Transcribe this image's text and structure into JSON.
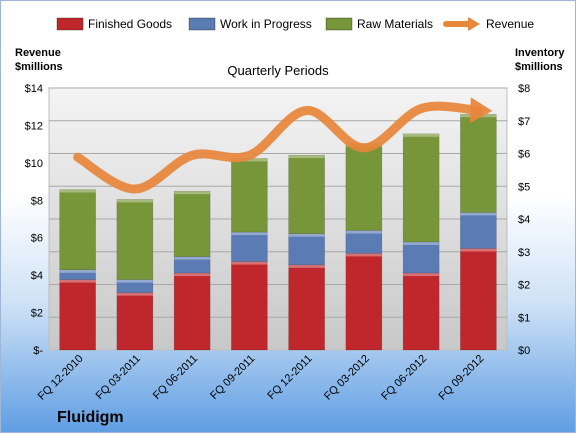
{
  "company": "Fluidigm",
  "chart_data": {
    "type": "bar",
    "stacked": true,
    "title": "Quarterly Periods",
    "categories": [
      "FQ 12-2010",
      "FQ 03-2011",
      "FQ 06-2011",
      "FQ 09-2011",
      "FQ 12-2011",
      "FQ 03-2012",
      "FQ 06-2012",
      "FQ 09-2012"
    ],
    "left_axis": {
      "label_lines": [
        "Revenue",
        "$millions"
      ],
      "ylim": [
        0,
        14
      ],
      "ticks": [
        "$-",
        "$2",
        "$4",
        "$6",
        "$8",
        "$10",
        "$12",
        "$14"
      ]
    },
    "right_axis": {
      "label_lines": [
        "Inventory",
        "$millions"
      ],
      "ylim": [
        0,
        8
      ],
      "ticks": [
        "$0",
        "$1",
        "$2",
        "$3",
        "$4",
        "$5",
        "$6",
        "$7",
        "$8"
      ]
    },
    "series": [
      {
        "name": "Finished Goods",
        "axis": "right",
        "color": "#c0272d",
        "values": [
          2.15,
          1.75,
          2.35,
          2.7,
          2.6,
          2.95,
          2.35,
          3.1
        ]
      },
      {
        "name": "Work in Progress",
        "axis": "right",
        "color": "#5b7bb5",
        "values": [
          0.3,
          0.4,
          0.5,
          0.9,
          0.95,
          0.7,
          0.95,
          1.1
        ]
      },
      {
        "name": "Raw Materials",
        "axis": "right",
        "color": "#77963a",
        "values": [
          2.45,
          2.45,
          2.0,
          2.25,
          2.4,
          2.65,
          3.3,
          3.0
        ]
      },
      {
        "name": "Revenue",
        "axis": "left",
        "color": "#e8863a",
        "type": "line",
        "values": [
          10.3,
          8.6,
          10.4,
          10.4,
          12.8,
          10.8,
          12.9,
          12.8
        ]
      }
    ],
    "grid": true,
    "legend": "top"
  }
}
